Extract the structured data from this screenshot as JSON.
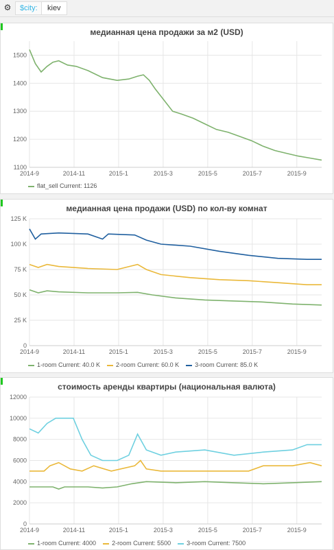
{
  "toolbar": {
    "gear_icon": "gear-icon",
    "var_label": "$city:",
    "var_value": "kiev"
  },
  "panels": [
    {
      "title": "медианная цена продажи за м2 (USD)",
      "chart_data": {
        "type": "line",
        "x_ticks": [
          "2014-9",
          "2014-11",
          "2015-1",
          "2015-3",
          "2015-5",
          "2015-7",
          "2015-9"
        ],
        "y_ticks": [
          "1100",
          "1200",
          "1300",
          "1400",
          "1500"
        ],
        "ylim": [
          1100,
          1550
        ],
        "grid": true,
        "series": [
          {
            "name": "flat_sell",
            "color": "#7eb26d",
            "current": "Current: 1126",
            "points": [
              [
                0,
                1520
              ],
              [
                0.02,
                1470
              ],
              [
                0.04,
                1440
              ],
              [
                0.06,
                1460
              ],
              [
                0.08,
                1475
              ],
              [
                0.1,
                1480
              ],
              [
                0.13,
                1465
              ],
              [
                0.16,
                1460
              ],
              [
                0.2,
                1445
              ],
              [
                0.25,
                1420
              ],
              [
                0.3,
                1410
              ],
              [
                0.34,
                1415
              ],
              [
                0.37,
                1425
              ],
              [
                0.39,
                1430
              ],
              [
                0.41,
                1410
              ],
              [
                0.43,
                1380
              ],
              [
                0.46,
                1340
              ],
              [
                0.49,
                1300
              ],
              [
                0.52,
                1290
              ],
              [
                0.56,
                1275
              ],
              [
                0.6,
                1255
              ],
              [
                0.64,
                1235
              ],
              [
                0.68,
                1225
              ],
              [
                0.72,
                1210
              ],
              [
                0.76,
                1195
              ],
              [
                0.8,
                1175
              ],
              [
                0.84,
                1160
              ],
              [
                0.88,
                1150
              ],
              [
                0.92,
                1140
              ],
              [
                0.96,
                1133
              ],
              [
                1,
                1126
              ]
            ]
          }
        ]
      }
    },
    {
      "title": "медианная цена продажи (USD) по кол-ву комнат",
      "chart_data": {
        "type": "line",
        "x_ticks": [
          "2014-9",
          "2014-11",
          "2015-1",
          "2015-3",
          "2015-5",
          "2015-7",
          "2015-9"
        ],
        "y_ticks": [
          "0",
          "25 K",
          "50 K",
          "75 K",
          "100 K",
          "125 K"
        ],
        "ylim": [
          0,
          125000
        ],
        "grid": true,
        "series": [
          {
            "name": "1-room",
            "color": "#7eb26d",
            "current": "Current: 40.0 K",
            "points": [
              [
                0,
                55000
              ],
              [
                0.03,
                52000
              ],
              [
                0.06,
                54000
              ],
              [
                0.1,
                53000
              ],
              [
                0.2,
                52000
              ],
              [
                0.3,
                52000
              ],
              [
                0.37,
                52500
              ],
              [
                0.42,
                50000
              ],
              [
                0.5,
                47000
              ],
              [
                0.6,
                45000
              ],
              [
                0.7,
                44000
              ],
              [
                0.8,
                43000
              ],
              [
                0.9,
                41000
              ],
              [
                1,
                40000
              ]
            ]
          },
          {
            "name": "2-room",
            "color": "#eab839",
            "current": "Current: 60.0 K",
            "points": [
              [
                0,
                80000
              ],
              [
                0.03,
                77000
              ],
              [
                0.06,
                80000
              ],
              [
                0.1,
                78000
              ],
              [
                0.2,
                76000
              ],
              [
                0.3,
                75000
              ],
              [
                0.37,
                80000
              ],
              [
                0.4,
                75000
              ],
              [
                0.45,
                70000
              ],
              [
                0.55,
                67000
              ],
              [
                0.65,
                65000
              ],
              [
                0.75,
                64000
              ],
              [
                0.85,
                62000
              ],
              [
                0.95,
                60000
              ],
              [
                1,
                60000
              ]
            ]
          },
          {
            "name": "3-room",
            "color": "#1f5f9f",
            "current": "Current: 85.0 K",
            "points": [
              [
                0,
                115000
              ],
              [
                0.02,
                105000
              ],
              [
                0.04,
                110000
              ],
              [
                0.1,
                111000
              ],
              [
                0.2,
                110000
              ],
              [
                0.25,
                105000
              ],
              [
                0.27,
                110000
              ],
              [
                0.36,
                109000
              ],
              [
                0.4,
                104000
              ],
              [
                0.45,
                100000
              ],
              [
                0.55,
                98000
              ],
              [
                0.65,
                93000
              ],
              [
                0.75,
                89000
              ],
              [
                0.85,
                86000
              ],
              [
                0.95,
                85000
              ],
              [
                1,
                85000
              ]
            ]
          }
        ]
      }
    },
    {
      "title": "стоимость аренды квартиры (национальная валюта)",
      "chart_data": {
        "type": "line",
        "x_ticks": [
          "2014-9",
          "2014-11",
          "2015-1",
          "2015-3",
          "2015-5",
          "2015-7",
          "2015-9"
        ],
        "y_ticks": [
          "0",
          "2000",
          "4000",
          "6000",
          "8000",
          "10000",
          "12000"
        ],
        "ylim": [
          0,
          12000
        ],
        "grid": true,
        "series": [
          {
            "name": "1-room",
            "color": "#7eb26d",
            "current": "Current: 4000",
            "points": [
              [
                0,
                3500
              ],
              [
                0.08,
                3500
              ],
              [
                0.1,
                3300
              ],
              [
                0.12,
                3500
              ],
              [
                0.2,
                3500
              ],
              [
                0.25,
                3400
              ],
              [
                0.3,
                3500
              ],
              [
                0.35,
                3800
              ],
              [
                0.4,
                4000
              ],
              [
                0.5,
                3900
              ],
              [
                0.6,
                4000
              ],
              [
                0.7,
                3900
              ],
              [
                0.8,
                3800
              ],
              [
                0.9,
                3900
              ],
              [
                1,
                4000
              ]
            ]
          },
          {
            "name": "2-room",
            "color": "#eab839",
            "current": "Current: 5500",
            "points": [
              [
                0,
                5000
              ],
              [
                0.05,
                5000
              ],
              [
                0.07,
                5500
              ],
              [
                0.1,
                5800
              ],
              [
                0.14,
                5200
              ],
              [
                0.18,
                5000
              ],
              [
                0.22,
                5500
              ],
              [
                0.28,
                5000
              ],
              [
                0.36,
                5500
              ],
              [
                0.38,
                6000
              ],
              [
                0.4,
                5200
              ],
              [
                0.45,
                5000
              ],
              [
                0.55,
                5000
              ],
              [
                0.65,
                5000
              ],
              [
                0.75,
                5000
              ],
              [
                0.8,
                5500
              ],
              [
                0.9,
                5500
              ],
              [
                0.96,
                5800
              ],
              [
                1,
                5500
              ]
            ]
          },
          {
            "name": "3-room",
            "color": "#6ed0e0",
            "current": "Current: 7500",
            "points": [
              [
                0,
                9000
              ],
              [
                0.03,
                8600
              ],
              [
                0.06,
                9500
              ],
              [
                0.09,
                10000
              ],
              [
                0.15,
                10000
              ],
              [
                0.18,
                8000
              ],
              [
                0.21,
                6500
              ],
              [
                0.25,
                6000
              ],
              [
                0.3,
                6000
              ],
              [
                0.34,
                6500
              ],
              [
                0.37,
                8500
              ],
              [
                0.4,
                7000
              ],
              [
                0.45,
                6500
              ],
              [
                0.5,
                6800
              ],
              [
                0.6,
                7000
              ],
              [
                0.7,
                6500
              ],
              [
                0.8,
                6800
              ],
              [
                0.9,
                7000
              ],
              [
                0.95,
                7500
              ],
              [
                1,
                7500
              ]
            ]
          }
        ]
      }
    }
  ]
}
